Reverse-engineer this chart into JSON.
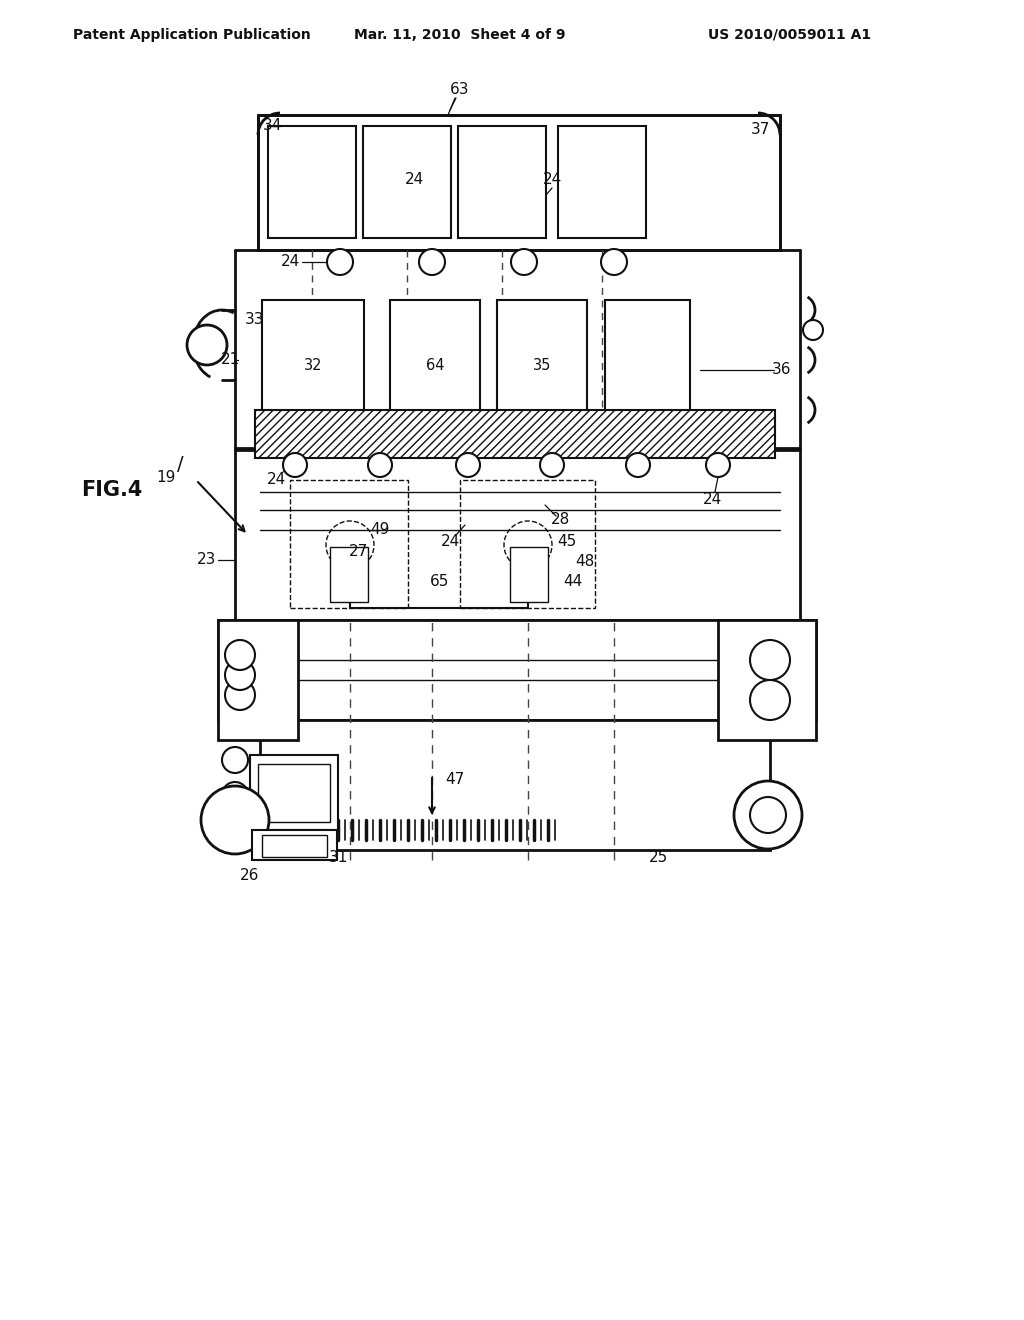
{
  "bg_color": "#ffffff",
  "lc": "#111111",
  "header_left": "Patent Application Publication",
  "header_mid": "Mar. 11, 2010  Sheet 4 of 9",
  "header_right": "US 2010/0059011 A1",
  "fig_label": "FIG.4"
}
